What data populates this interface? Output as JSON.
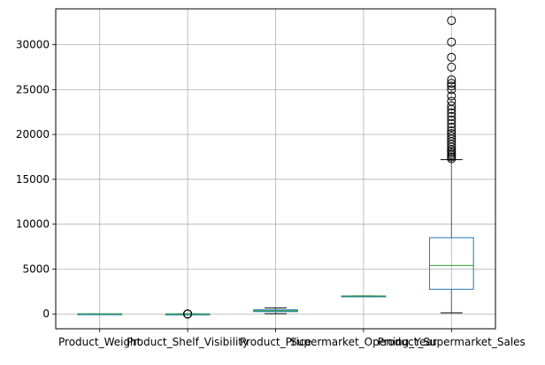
{
  "chart_data": {
    "type": "box",
    "categories": [
      "Product_Weight",
      "Product_Shelf_Visibility",
      "Product_Price",
      "Supermarket_Opening_Year",
      "Product_Supermarket_Sales"
    ],
    "ylim": [
      -1650,
      34000
    ],
    "yticks": [
      0,
      5000,
      10000,
      15000,
      20000,
      25000,
      30000
    ],
    "grid": true,
    "colors": {
      "box": "#1f77b4",
      "median": "#2ca02c",
      "whisker": "#000000",
      "grid": "#b0b0b0",
      "flier": "#000000"
    },
    "boxes": [
      {
        "whislo": 4.5,
        "q1": 9,
        "med": 12.5,
        "q3": 16.5,
        "whishi": 22,
        "fliers": []
      },
      {
        "whislo": 0,
        "q1": 0.02,
        "med": 0.05,
        "q3": 0.1,
        "whishi": 0.2,
        "fliers": [
          0.22,
          0.24,
          0.26,
          0.28,
          0.3,
          0.33
        ]
      },
      {
        "whislo": 30,
        "q1": 250,
        "med": 360,
        "q3": 460,
        "whishi": 680,
        "fliers": []
      },
      {
        "whislo": 1992,
        "q1": 1994,
        "med": 1999,
        "q3": 2004,
        "whishi": 2011,
        "fliers": []
      },
      {
        "whislo": 120,
        "q1": 2750,
        "med": 5400,
        "q3": 8500,
        "whishi": 17200,
        "fliers": [
          17300,
          17500,
          17700,
          17900,
          18100,
          18300,
          18600,
          18900,
          19200,
          19500,
          19800,
          20100,
          20400,
          20800,
          21200,
          21600,
          22000,
          22400,
          22800,
          23200,
          23700,
          24300,
          25000,
          25400,
          25700,
          26100,
          27500,
          28600,
          30300,
          32700
        ]
      }
    ]
  }
}
